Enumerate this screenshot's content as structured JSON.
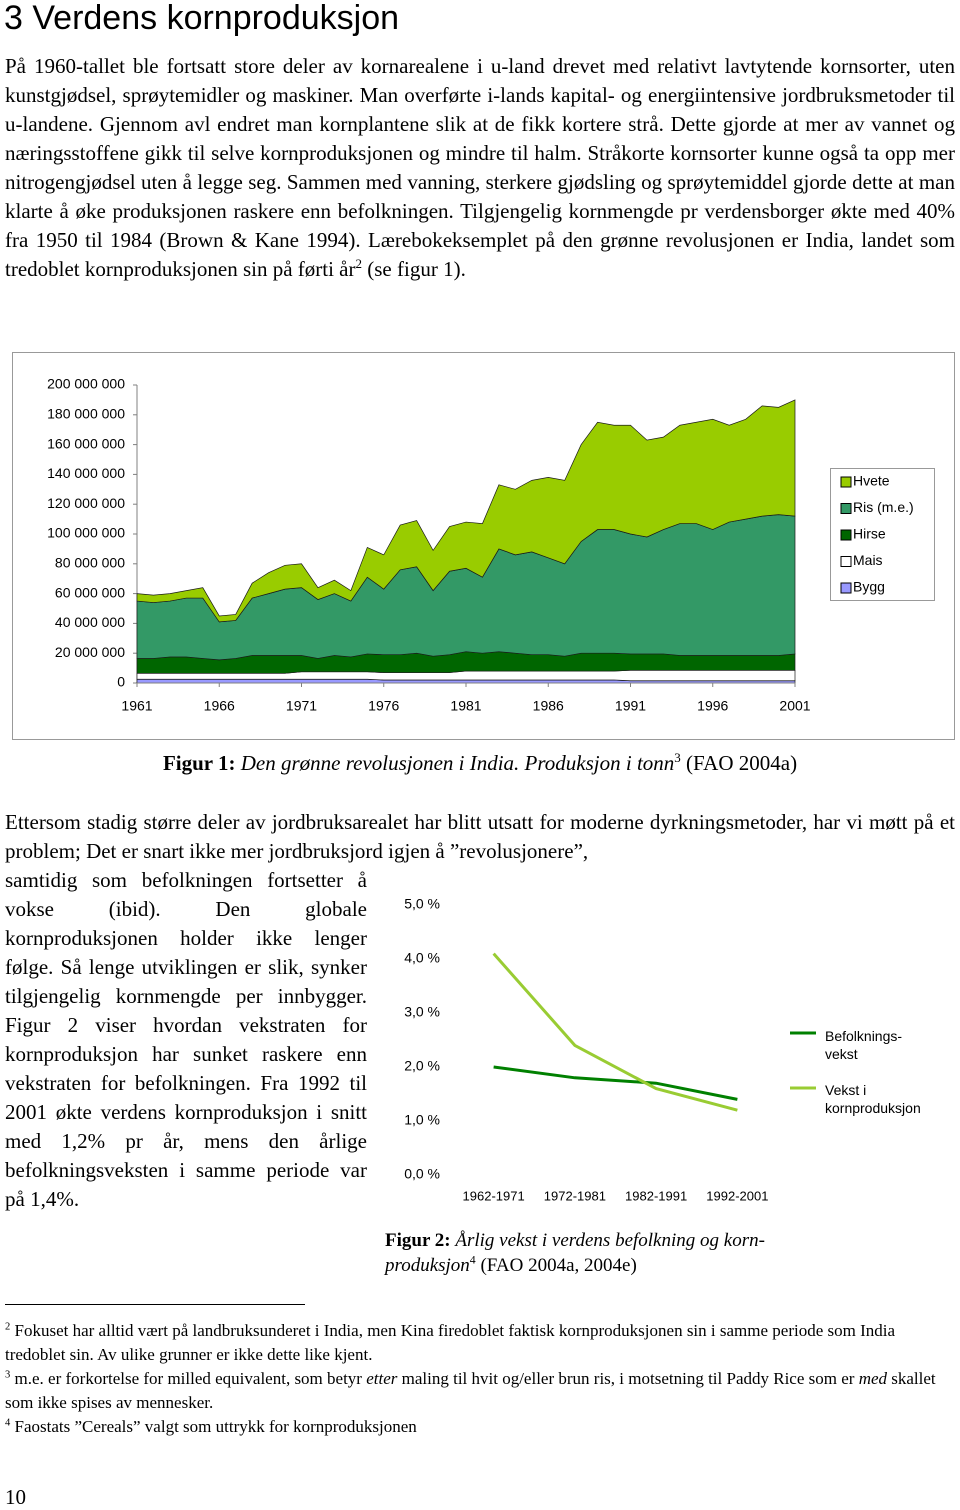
{
  "heading": "3 Verdens kornproduksjon",
  "paragraph_1": {
    "text": "På 1960-tallet ble fortsatt store deler av kornarealene i u-land drevet med relativt lavtytende kornsorter, uten kunstgjødsel, sprøytemidler og maskiner. Man overførte i-lands kapital- og energiintensive jordbruksmetoder til u-landene. Gjennom avl endret man kornplantene slik at de fikk kortere strå. Dette gjorde at mer av vannet og næringsstoffene gikk til selve kornproduksjonen og mindre til halm. Stråkorte kornsorter kunne også ta opp mer nitrogengjødsel uten å legge seg. Sammen med vanning, sterkere gjødsling og sprøytemiddel gjorde dette at man klarte å øke produksjonen raskere enn befolkningen. Tilgjengelig kornmengde pr verdensborger økte med 40% fra 1950 til 1984 (Brown & Kane 1994). Lærebokeksemplet på den grønne revolusjonen er India, landet som tredoblet kornproduksjonen sin på førti år",
    "footnote_ref": "2",
    "text_after": " (se figur 1)."
  },
  "figure_1_caption": {
    "label": "Figur 1:",
    "text": " Den grønne revolusjonen i India. Produksjon i tonn",
    "footnote_ref": "3",
    "source": " (FAO 2004a)"
  },
  "paragraph_2": {
    "text": "Ettersom stadig større deler av jordbruksarealet har blitt utsatt for moderne dyrkningsmetoder, har vi møtt på et problem; Det er snart ikke mer jordbruksjord igjen å ”revolusjonere”,",
    "column_text": "samtidig som befolkningen fortsetter å vokse (ibid). Den globale kornproduksjonen holder ikke lenger følge. Så lenge utviklingen er slik, synker tilgjengelig kornmengde per innbygger. Figur 2 viser hvordan vekstraten for kornproduksjon har sunket raskere enn vekstraten for befolkningen. Fra 1992 til 2001 økte verdens kornproduksjon i snitt med 1,2% pr år, mens den årlige befolkningsveksten i samme periode var på 1,4%."
  },
  "figure_2_caption": {
    "label": "Figur 2:",
    "text": " Årlig vekst i verdens befolkning og korn-produksjon",
    "footnote_ref": "4",
    "source": " (FAO 2004a, 2004e)"
  },
  "footnotes": [
    {
      "mark": "2",
      "parts": [
        "Fokuset har alltid vært på landbruksunderet i India, men Kina firedoblet faktisk kornproduksjonen sin i samme periode som India tredoblet sin. Av ulike grunner er ikke dette like kjent."
      ]
    },
    {
      "mark": "3",
      "parts": [
        "m.e. er forkortelse for milled equivalent, som betyr ",
        "etter",
        " maling til hvit og/eller brun ris, i motsetning til Paddy Rice som er ",
        "med",
        " skallet som ikke spises av mennesker."
      ]
    },
    {
      "mark": "4",
      "parts": [
        "Faostats ”Cereals” valgt som uttrykk for kornproduksjonen"
      ]
    }
  ],
  "page_number": "10",
  "chart_data": [
    {
      "type": "area",
      "stacked": true,
      "x": [
        1961,
        1962,
        1963,
        1964,
        1965,
        1966,
        1967,
        1968,
        1969,
        1970,
        1971,
        1972,
        1973,
        1974,
        1975,
        1976,
        1977,
        1978,
        1979,
        1980,
        1981,
        1982,
        1983,
        1984,
        1985,
        1986,
        1987,
        1988,
        1989,
        1990,
        1991,
        1992,
        1993,
        1994,
        1995,
        1996,
        1997,
        1998,
        1999,
        2000,
        2001
      ],
      "xlim": [
        1961,
        2001
      ],
      "xticks": [
        1961,
        1966,
        1971,
        1976,
        1981,
        1986,
        1991,
        1996,
        2001
      ],
      "ylim": [
        0,
        200000000
      ],
      "yticks": [
        0,
        {
          "value": 20000000,
          "label": "20 000 000"
        },
        {
          "value": 40000000,
          "label": "40 000 000"
        },
        {
          "value": 60000000,
          "label": "60 000 000"
        },
        {
          "value": 80000000,
          "label": "80 000 000"
        },
        {
          "value": 100000000,
          "label": "100 000 000"
        },
        {
          "value": 120000000,
          "label": "120 000 000"
        },
        {
          "value": 140000000,
          "label": "140 000 000"
        },
        {
          "value": 160000000,
          "label": "160 000 000"
        },
        {
          "value": 180000000,
          "label": "180 000 000"
        },
        {
          "value": 200000000,
          "label": "200 000 000"
        }
      ],
      "series": [
        {
          "name": "Hvete",
          "color": "#99cc00",
          "values": [
            5000000,
            5000000,
            5000000,
            5000000,
            7000000,
            4000000,
            4000000,
            10000000,
            14000000,
            16000000,
            16000000,
            8000000,
            9000000,
            7000000,
            20000000,
            23000000,
            30000000,
            31000000,
            27000000,
            30000000,
            31000000,
            36000000,
            43000000,
            44000000,
            48000000,
            54000000,
            56000000,
            65000000,
            72000000,
            70000000,
            73000000,
            65000000,
            62000000,
            66000000,
            68000000,
            74000000,
            65000000,
            67000000,
            74000000,
            72000000,
            78000000
          ]
        },
        {
          "name": "Ris (m.e.)",
          "color": "#339966",
          "values": [
            38500000,
            37500000,
            37500000,
            39500000,
            40500000,
            25500000,
            25500000,
            38500000,
            41500000,
            44500000,
            45500000,
            39500000,
            41500000,
            37500000,
            51500000,
            44000000,
            57000000,
            58000000,
            44000000,
            56000000,
            56000000,
            51000000,
            69000000,
            66000000,
            69000000,
            65000000,
            62000000,
            75000000,
            83000000,
            83000000,
            80500000,
            78500000,
            83500000,
            88500000,
            88500000,
            84500000,
            89500000,
            91500000,
            93500000,
            94500000,
            92500000
          ]
        },
        {
          "name": "Hirse",
          "color": "#006600",
          "values": [
            10000000,
            10000000,
            11000000,
            11000000,
            10000000,
            9000000,
            10000000,
            12000000,
            12000000,
            12000000,
            11000000,
            9000000,
            11000000,
            10000000,
            12000000,
            12000000,
            12000000,
            13000000,
            11000000,
            12000000,
            13000000,
            12000000,
            13000000,
            12000000,
            11000000,
            11000000,
            10000000,
            12000000,
            12000000,
            12000000,
            11000000,
            11000000,
            11000000,
            10000000,
            10000000,
            10000000,
            10000000,
            10000000,
            10000000,
            10000000,
            11000000
          ]
        },
        {
          "name": "Mais",
          "color": "#ffffff",
          "values": [
            4000000,
            4000000,
            4000000,
            4000000,
            4000000,
            4000000,
            4000000,
            4000000,
            4000000,
            4000000,
            5000000,
            5000000,
            5000000,
            5000000,
            5000000,
            5000000,
            5000000,
            5000000,
            5000000,
            5000000,
            6000000,
            6000000,
            6000000,
            6000000,
            6000000,
            6000000,
            6000000,
            6000000,
            6000000,
            6000000,
            7000000,
            7000000,
            7000000,
            7000000,
            7000000,
            7000000,
            7000000,
            7000000,
            7000000,
            7000000,
            7000000
          ]
        },
        {
          "name": "Bygg",
          "color": "#9999ff",
          "values": [
            2500000,
            2500000,
            2500000,
            2500000,
            2500000,
            2500000,
            2500000,
            2500000,
            2500000,
            2500000,
            2500000,
            2500000,
            2500000,
            2500000,
            2500000,
            2000000,
            2000000,
            2000000,
            2000000,
            2000000,
            2000000,
            2000000,
            2000000,
            2000000,
            2000000,
            2000000,
            2000000,
            2000000,
            2000000,
            2000000,
            1500000,
            1500000,
            1500000,
            1500000,
            1500000,
            1500000,
            1500000,
            1500000,
            1500000,
            1500000,
            1500000
          ]
        }
      ]
    },
    {
      "type": "line",
      "categories": [
        "1962-1971",
        "1972-1981",
        "1982-1991",
        "1992-2001"
      ],
      "ylim": [
        0,
        5
      ],
      "yticks": [
        {
          "value": 0,
          "label": "0,0 %"
        },
        {
          "value": 1,
          "label": "1,0 %"
        },
        {
          "value": 2,
          "label": "2,0 %"
        },
        {
          "value": 3,
          "label": "3,0 %"
        },
        {
          "value": 4,
          "label": "4,0 %"
        },
        {
          "value": 5,
          "label": "5,0 %"
        }
      ],
      "series": [
        {
          "name": "Befolknings-vekst",
          "color": "#008000",
          "values": [
            2.0,
            1.8,
            1.7,
            1.4
          ]
        },
        {
          "name": "Vekst i kornproduksjon",
          "color": "#99cc33",
          "values": [
            4.1,
            2.4,
            1.6,
            1.2
          ]
        }
      ]
    }
  ]
}
